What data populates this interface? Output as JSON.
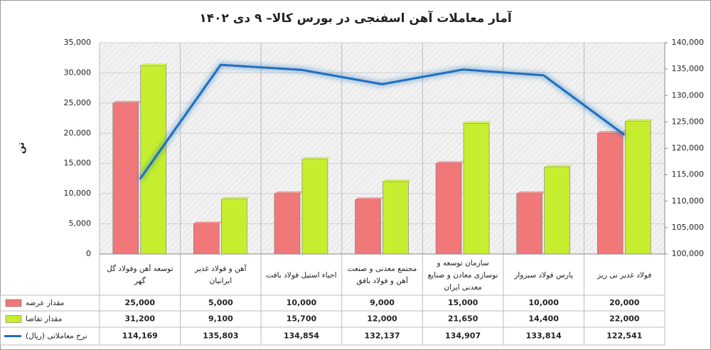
{
  "chart_data": {
    "type": "bar",
    "title": "آمار معاملات آهن اسفنجی در بورس کالا– ۹ دی ۱۴۰۲",
    "y_label": "تن",
    "categories": [
      "توسعه آهن وفولاد گل گهر",
      "آهن و فولاد غدیر ایرانیان",
      "احیاء استیل فولاد بافت",
      "مجتمع معدنی و صنعت آهن و فولاد بافق",
      "سازمان توسعه و نوسازی معادن و صنایع معدنی ایران",
      "پارس فولاد سبزوار",
      "فولاد غدیر نی ریز"
    ],
    "series": [
      {
        "name": "مقدار عرضه",
        "color": "#f07878",
        "type": "bar",
        "values": [
          25000,
          5000,
          10000,
          9000,
          15000,
          10000,
          20000
        ],
        "value_labels": [
          "25,000",
          "5,000",
          "10,000",
          "9,000",
          "15,000",
          "10,000",
          "20,000"
        ]
      },
      {
        "name": "مقدار تقاضا",
        "color": "#c6ee2e",
        "type": "bar",
        "values": [
          31200,
          9100,
          15700,
          12000,
          21650,
          14400,
          22000
        ],
        "value_labels": [
          "31,200",
          "9,100",
          "15,700",
          "12,000",
          "21,650",
          "14,400",
          "22,000"
        ]
      },
      {
        "name": "نرخ معاملاتی (ریال)",
        "color": "#1f6fc0",
        "type": "line",
        "axis": "y2",
        "values": [
          114169,
          135803,
          134854,
          132137,
          134907,
          133814,
          122541
        ],
        "value_labels": [
          "114,169",
          "135,803",
          "134,854",
          "132,137",
          "134,907",
          "133,814",
          "122,541"
        ]
      }
    ],
    "ylim": [
      0,
      35000
    ],
    "yticks": [
      0,
      {
        "value": 5000,
        "label": "5,000"
      },
      {
        "value": 10000,
        "label": "10,000"
      },
      {
        "value": 15000,
        "label": "15,000"
      },
      {
        "value": 20000,
        "label": "20,000"
      },
      {
        "value": 25000,
        "label": "25,000"
      },
      {
        "value": 30000,
        "label": "30,000"
      },
      {
        "value": 35000,
        "label": "35,000"
      }
    ],
    "y2lim": [
      100000,
      140000
    ],
    "y2ticks": [
      {
        "value": 100000,
        "label": "100,000"
      },
      {
        "value": 105000,
        "label": "105,000"
      },
      {
        "value": 110000,
        "label": "110,000"
      },
      {
        "value": 115000,
        "label": "115,000"
      },
      {
        "value": 120000,
        "label": "120,000"
      },
      {
        "value": 125000,
        "label": "125,000"
      },
      {
        "value": 130000,
        "label": "130,000"
      },
      {
        "value": 135000,
        "label": "135,000"
      },
      {
        "value": 140000,
        "label": "140,000"
      }
    ],
    "grid": true
  }
}
